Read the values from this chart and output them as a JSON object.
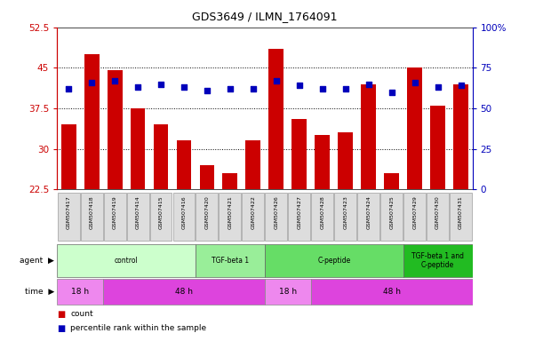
{
  "title": "GDS3649 / ILMN_1764091",
  "samples": [
    "GSM507417",
    "GSM507418",
    "GSM507419",
    "GSM507414",
    "GSM507415",
    "GSM507416",
    "GSM507420",
    "GSM507421",
    "GSM507422",
    "GSM507426",
    "GSM507427",
    "GSM507428",
    "GSM507423",
    "GSM507424",
    "GSM507425",
    "GSM507429",
    "GSM507430",
    "GSM507431"
  ],
  "counts": [
    34.5,
    47.5,
    44.5,
    37.5,
    34.5,
    31.5,
    27.0,
    25.5,
    31.5,
    48.5,
    35.5,
    32.5,
    33.0,
    42.0,
    25.5,
    45.0,
    38.0,
    42.0
  ],
  "percentiles": [
    62,
    66,
    67,
    63,
    65,
    63,
    61,
    62,
    62,
    67,
    64,
    62,
    62,
    65,
    60,
    66,
    63,
    64
  ],
  "ylim_left": [
    22.5,
    52.5
  ],
  "ylim_right": [
    0,
    100
  ],
  "yticks_left": [
    22.5,
    30.0,
    37.5,
    45.0,
    52.5
  ],
  "yticks_right": [
    0,
    25,
    50,
    75,
    100
  ],
  "bar_color": "#CC0000",
  "dot_color": "#0000BB",
  "agent_groups": [
    {
      "label": "control",
      "start": 0,
      "end": 6,
      "color": "#CCFFCC"
    },
    {
      "label": "TGF-beta 1",
      "start": 6,
      "end": 9,
      "color": "#99EE99"
    },
    {
      "label": "C-peptide",
      "start": 9,
      "end": 15,
      "color": "#66DD66"
    },
    {
      "label": "TGF-beta 1 and\nC-peptide",
      "start": 15,
      "end": 18,
      "color": "#22BB22"
    }
  ],
  "time_groups": [
    {
      "label": "18 h",
      "start": 0,
      "end": 2,
      "color": "#EE88EE"
    },
    {
      "label": "48 h",
      "start": 2,
      "end": 9,
      "color": "#DD44DD"
    },
    {
      "label": "18 h",
      "start": 9,
      "end": 11,
      "color": "#EE88EE"
    },
    {
      "label": "48 h",
      "start": 11,
      "end": 18,
      "color": "#DD44DD"
    }
  ],
  "xlabel_color": "#CC0000",
  "ylabel_right_color": "#0000BB",
  "tick_label_bg": "#DDDDDD"
}
